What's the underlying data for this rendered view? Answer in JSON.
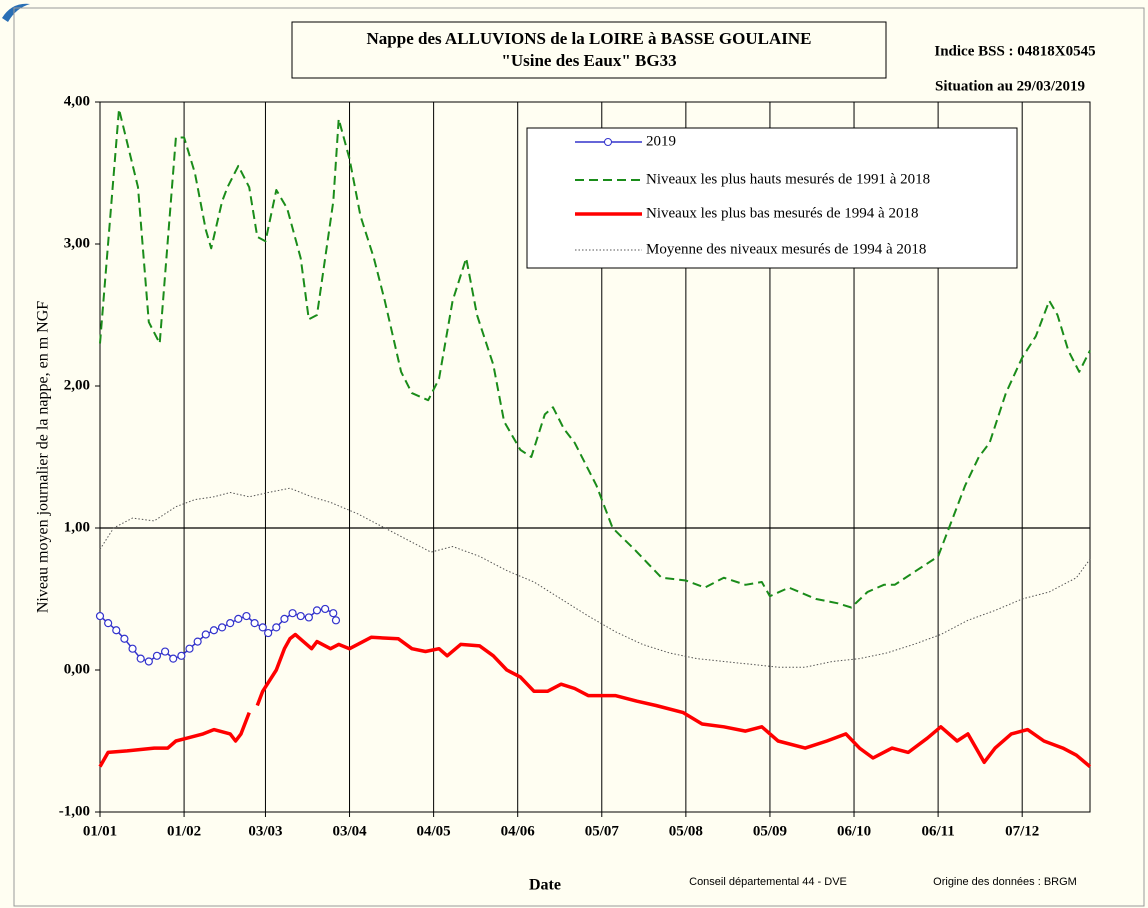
{
  "chart_data": {
    "type": "line",
    "title": "Nappe des ALLUVIONS de la LOIRE à BASSE GOULAINE",
    "subtitle": "\"Usine des Eaux\" BG33",
    "annotations": [
      "Indice BSS : 04818X0545",
      "Situation au 29/03/2019",
      "Conseil départemental 44 - DVE",
      "Origine des données : BRGM"
    ],
    "x_label": "Date",
    "y_label": "Niveau moyen journalier de la nappe, en m NGF",
    "xlim": [
      0,
      365
    ],
    "xticks": [
      {
        "value": 0,
        "label": "01/01"
      },
      {
        "value": 31,
        "label": "01/02"
      },
      {
        "value": 61,
        "label": "03/03"
      },
      {
        "value": 92,
        "label": "03/04"
      },
      {
        "value": 123,
        "label": "04/05"
      },
      {
        "value": 154,
        "label": "04/06"
      },
      {
        "value": 185,
        "label": "05/07"
      },
      {
        "value": 216,
        "label": "05/08"
      },
      {
        "value": 247,
        "label": "05/09"
      },
      {
        "value": 278,
        "label": "06/10"
      },
      {
        "value": 309,
        "label": "06/11"
      },
      {
        "value": 340,
        "label": "07/12"
      }
    ],
    "ylim": [
      -1,
      4
    ],
    "yticks": [
      {
        "value": -1,
        "label": "-1,00"
      },
      {
        "value": 0,
        "label": "0,00"
      },
      {
        "value": 1,
        "label": "1,00"
      },
      {
        "value": 2,
        "label": "2,00"
      },
      {
        "value": 3,
        "label": "3,00"
      },
      {
        "value": 4,
        "label": "4,00"
      }
    ],
    "reference_line": 1,
    "grid": "x",
    "legend": "upper right",
    "series": [
      {
        "name": "2019",
        "color": "#3333cc",
        "style": "markers",
        "x": [
          0,
          3,
          6,
          9,
          12,
          15,
          18,
          21,
          24,
          27,
          30,
          33,
          36,
          39,
          42,
          45,
          48,
          51,
          54,
          57,
          60,
          62,
          65,
          68,
          71,
          74,
          77,
          80,
          83,
          86,
          87
        ],
        "values": [
          0.38,
          0.33,
          0.28,
          0.22,
          0.15,
          0.08,
          0.06,
          0.1,
          0.13,
          0.08,
          0.1,
          0.15,
          0.2,
          0.25,
          0.28,
          0.3,
          0.33,
          0.36,
          0.38,
          0.33,
          0.3,
          0.26,
          0.3,
          0.36,
          0.4,
          0.38,
          0.37,
          0.42,
          0.43,
          0.4,
          0.35
        ]
      },
      {
        "name": "Niveaux les plus hauts mesurés de 1991 à 2018",
        "color": "#1a8c1a",
        "style": "dashed",
        "x": [
          0,
          7,
          14,
          18,
          22,
          28,
          31,
          35,
          39,
          41,
          45,
          47,
          51,
          55,
          58,
          61,
          65,
          69,
          74,
          77,
          80,
          86,
          88,
          92,
          96,
          101,
          105,
          111,
          115,
          121,
          125,
          130,
          135,
          139,
          145,
          149,
          155,
          159,
          164,
          167,
          171,
          175,
          183,
          189,
          197,
          202,
          207,
          216,
          223,
          230,
          238,
          244,
          247,
          254,
          264,
          272,
          277,
          283,
          289,
          293,
          301,
          309,
          314,
          319,
          324,
          328,
          334,
          340,
          345,
          350,
          353,
          357,
          361,
          365
        ],
        "values": [
          2.3,
          3.95,
          3.4,
          2.45,
          2.3,
          3.75,
          3.75,
          3.5,
          3.1,
          2.97,
          3.3,
          3.4,
          3.55,
          3.4,
          3.05,
          3.02,
          3.38,
          3.25,
          2.9,
          2.47,
          2.5,
          3.3,
          3.88,
          3.6,
          3.2,
          2.9,
          2.6,
          2.1,
          1.95,
          1.9,
          2.05,
          2.6,
          2.9,
          2.5,
          2.15,
          1.75,
          1.55,
          1.5,
          1.8,
          1.85,
          1.7,
          1.6,
          1.3,
          1.0,
          0.85,
          0.75,
          0.65,
          0.63,
          0.58,
          0.65,
          0.6,
          0.62,
          0.52,
          0.58,
          0.5,
          0.47,
          0.44,
          0.55,
          0.6,
          0.6,
          0.7,
          0.8,
          1.05,
          1.3,
          1.5,
          1.6,
          1.95,
          2.2,
          2.35,
          2.6,
          2.5,
          2.25,
          2.1,
          2.25
        ]
      },
      {
        "name": "Niveaux les plus bas mesurés de 1994 à 2018",
        "color": "#ff0000",
        "style": "thick",
        "x": [
          0,
          3,
          10,
          20,
          25,
          28,
          32,
          38,
          42,
          48,
          50,
          52,
          55,
          56,
          58,
          60,
          65,
          68,
          70,
          72,
          75,
          78,
          80,
          85,
          88,
          92,
          97,
          100,
          110,
          115,
          120,
          125,
          128,
          133,
          140,
          145,
          150,
          155,
          160,
          165,
          170,
          175,
          180,
          190,
          198,
          205,
          215,
          222,
          230,
          238,
          244,
          250,
          260,
          268,
          275,
          280,
          285,
          292,
          298,
          305,
          310,
          316,
          320,
          326,
          330,
          336,
          342,
          348,
          355,
          360,
          365
        ],
        "values": [
          -0.68,
          -0.58,
          -0.57,
          -0.55,
          -0.55,
          -0.5,
          -0.48,
          -0.45,
          -0.42,
          -0.45,
          -0.5,
          -0.45,
          -0.3,
          null,
          -0.25,
          -0.15,
          0,
          0.15,
          0.22,
          0.25,
          0.2,
          0.15,
          0.2,
          0.15,
          0.18,
          0.15,
          0.2,
          0.23,
          0.22,
          0.15,
          0.13,
          0.15,
          0.1,
          0.18,
          0.17,
          0.1,
          0,
          -0.05,
          -0.15,
          -0.15,
          -0.1,
          -0.13,
          -0.18,
          -0.18,
          -0.22,
          -0.25,
          -0.3,
          -0.38,
          -0.4,
          -0.43,
          -0.4,
          -0.5,
          -0.55,
          -0.5,
          -0.45,
          -0.55,
          -0.62,
          -0.55,
          -0.58,
          -0.48,
          -0.4,
          -0.5,
          -0.45,
          -0.65,
          -0.55,
          -0.45,
          -0.42,
          -0.5,
          -0.55,
          -0.6,
          -0.68
        ]
      },
      {
        "name": "Moyenne des niveaux mesurés de 1994 à 2018",
        "color": "#555555",
        "style": "dotted",
        "x": [
          0,
          5,
          12,
          20,
          28,
          35,
          42,
          48,
          55,
          62,
          70,
          78,
          85,
          95,
          105,
          115,
          122,
          130,
          140,
          150,
          160,
          170,
          180,
          190,
          200,
          210,
          220,
          230,
          240,
          250,
          260,
          270,
          280,
          290,
          300,
          310,
          320,
          330,
          340,
          350,
          360,
          365
        ],
        "values": [
          0.85,
          1.0,
          1.07,
          1.05,
          1.15,
          1.2,
          1.22,
          1.25,
          1.22,
          1.25,
          1.28,
          1.22,
          1.18,
          1.1,
          1.0,
          0.9,
          0.83,
          0.87,
          0.8,
          0.7,
          0.62,
          0.5,
          0.38,
          0.27,
          0.18,
          0.12,
          0.08,
          0.06,
          0.04,
          0.02,
          0.02,
          0.06,
          0.08,
          0.12,
          0.18,
          0.25,
          0.35,
          0.42,
          0.5,
          0.55,
          0.65,
          0.78
        ]
      }
    ]
  }
}
